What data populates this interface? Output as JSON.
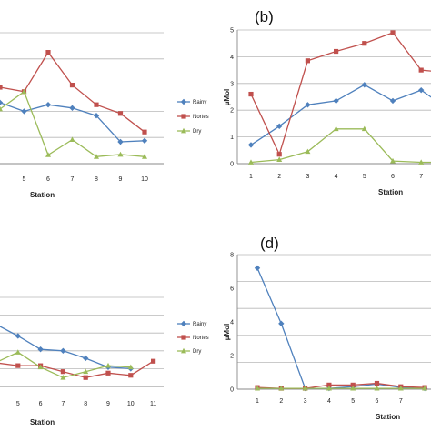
{
  "chart_data": [
    {
      "type": "line",
      "panel_label": "",
      "title": "",
      "xlabel": "Station",
      "ylabel": "",
      "x": [
        4,
        5,
        6,
        7,
        8,
        9,
        10
      ],
      "xticks": [
        "5",
        "6",
        "7",
        "8",
        "9",
        "10"
      ],
      "yticks": [],
      "ylim": [
        0,
        6
      ],
      "grid": true,
      "legend_position": "right",
      "series": [
        {
          "name": "Rainy",
          "color": "#4f81bd",
          "marker": "diamond",
          "values": [
            2.8,
            2.4,
            2.7,
            2.55,
            2.2,
            1.0,
            1.05
          ]
        },
        {
          "name": "Nortes",
          "color": "#c0504d",
          "marker": "square",
          "values": [
            3.5,
            3.3,
            5.1,
            3.6,
            2.7,
            2.3,
            1.45
          ]
        },
        {
          "name": "Dry",
          "color": "#9bbb59",
          "marker": "triangle",
          "values": [
            2.5,
            3.3,
            0.4,
            1.1,
            0.32,
            0.42,
            0.32
          ]
        }
      ]
    },
    {
      "type": "line",
      "panel_label": "(b)",
      "title": "",
      "xlabel": "Station",
      "ylabel": "µMol",
      "x": [
        1,
        2,
        3,
        4,
        5,
        6,
        7,
        8
      ],
      "xticks": [
        "1",
        "2",
        "3",
        "4",
        "5",
        "6",
        "7"
      ],
      "yticks": [
        "0",
        "1",
        "2",
        "3",
        "4",
        "5"
      ],
      "ylim": [
        0,
        5
      ],
      "grid": true,
      "legend_position": "",
      "series": [
        {
          "name": "Rainy",
          "color": "#4f81bd",
          "marker": "diamond",
          "values": [
            0.7,
            1.4,
            2.2,
            2.35,
            2.95,
            2.35,
            2.75,
            2.0
          ]
        },
        {
          "name": "Nortes",
          "color": "#c0504d",
          "marker": "square",
          "values": [
            2.6,
            0.35,
            3.85,
            4.2,
            4.5,
            4.9,
            3.5,
            3.4
          ]
        },
        {
          "name": "Dry",
          "color": "#9bbb59",
          "marker": "triangle",
          "values": [
            0.05,
            0.15,
            0.45,
            1.3,
            1.3,
            0.1,
            0.05,
            0.05
          ]
        }
      ]
    },
    {
      "type": "line",
      "panel_label": "",
      "title": "",
      "xlabel": "Station",
      "ylabel": "",
      "x": [
        4,
        5,
        6,
        7,
        8,
        9,
        10,
        11
      ],
      "xticks": [
        "5",
        "6",
        "7",
        "8",
        "9",
        "10",
        "11"
      ],
      "yticks": [],
      "ylim": [
        0,
        6
      ],
      "grid": true,
      "legend_position": "right",
      "series": [
        {
          "name": "Rainy",
          "color": "#4f81bd",
          "marker": "diamond",
          "values": [
            4.2,
            3.4,
            2.5,
            2.4,
            1.9,
            1.3,
            1.2,
            null
          ]
        },
        {
          "name": "Nortes",
          "color": "#c0504d",
          "marker": "square",
          "values": [
            1.6,
            1.4,
            1.4,
            1.0,
            0.6,
            0.9,
            0.75,
            1.7
          ]
        },
        {
          "name": "Dry",
          "color": "#9bbb59",
          "marker": "triangle",
          "values": [
            1.6,
            2.3,
            1.3,
            0.6,
            1.0,
            1.4,
            1.3,
            null
          ]
        }
      ]
    },
    {
      "type": "line",
      "panel_label": "(d)",
      "title": "",
      "xlabel": "Station",
      "ylabel": "µMol",
      "x": [
        1,
        2,
        3,
        4,
        5,
        6,
        7,
        8
      ],
      "xticks": [
        "1",
        "2",
        "3",
        "4",
        "5",
        "6",
        "7"
      ],
      "yticks": [
        "0",
        "2",
        "4",
        "6",
        "8"
      ],
      "ylim": [
        0,
        8
      ],
      "grid": true,
      "legend_position": "",
      "series": [
        {
          "name": "Rainy",
          "color": "#4f81bd",
          "marker": "diamond",
          "values": [
            7.2,
            3.9,
            0.05,
            0.05,
            0.15,
            0.3,
            0.1,
            0.05
          ]
        },
        {
          "name": "Nortes",
          "color": "#c0504d",
          "marker": "square",
          "values": [
            0.1,
            0.05,
            0.05,
            0.25,
            0.25,
            0.35,
            0.15,
            0.1
          ]
        },
        {
          "name": "Dry",
          "color": "#9bbb59",
          "marker": "triangle",
          "values": [
            0.05,
            0.05,
            0.05,
            0.05,
            0.05,
            0.05,
            0.05,
            0.05
          ]
        }
      ]
    }
  ]
}
